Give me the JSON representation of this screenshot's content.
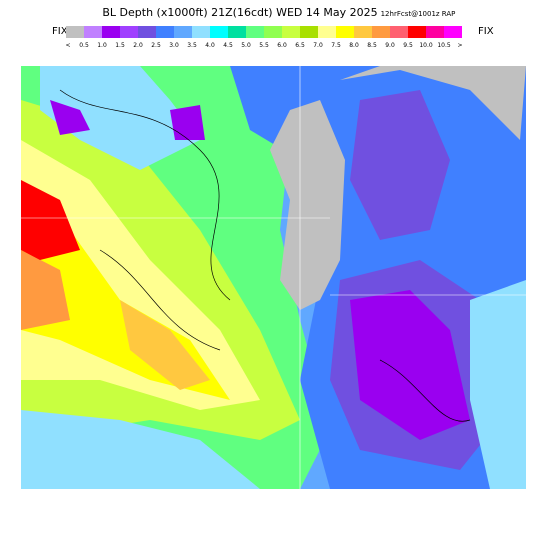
{
  "header": {
    "title": "BL Depth (x1000ft) 21Z(16cdt) WED 14 May 2025",
    "subtitle": "12hrFcst@1001z RAP"
  },
  "legend": {
    "left": "FIX",
    "right": "FIX",
    "colors": [
      "#c0c0c0",
      "#c080ff",
      "#9a00f0",
      "#a040ff",
      "#7050e0",
      "#4080ff",
      "#60a8ff",
      "#90e0ff",
      "#00ffff",
      "#00e0a0",
      "#60ff80",
      "#90ff50",
      "#c8ff40",
      "#a8e000",
      "#ffff90",
      "#ffff00",
      "#ffc840",
      "#ff9a40",
      "#ff6070",
      "#ff0000",
      "#ff00a0",
      "#ff00ff"
    ],
    "labels": [
      "<",
      "0.5",
      "1.0",
      "1.5",
      "2.0",
      "2.5",
      "3.0",
      "3.5",
      "4.0",
      "4.5",
      "5.0",
      "5.5",
      "6.0",
      "6.5",
      "7.0",
      "7.5",
      "8.0",
      "8.5",
      "9.0",
      "9.5",
      "10.0",
      "10.5",
      ">"
    ]
  }
}
